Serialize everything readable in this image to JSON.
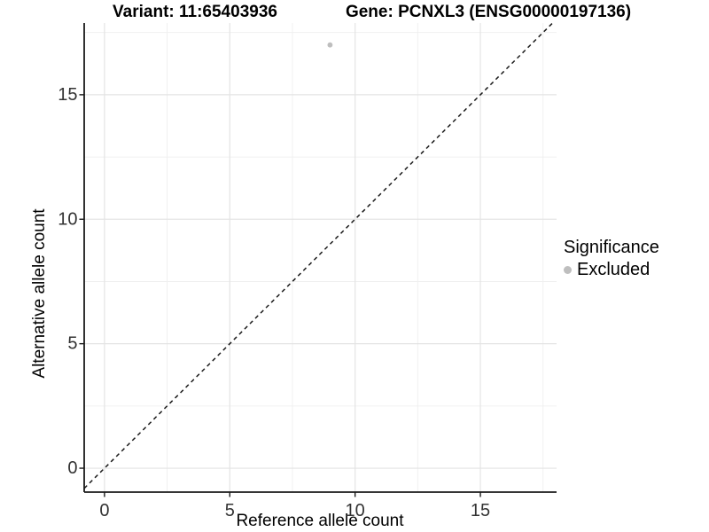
{
  "header": {
    "title_variant": "Variant: 11:65403936",
    "title_gene": "Gene: PCNXL3 (ENSG00000197136)"
  },
  "chart_data": {
    "type": "scatter",
    "title_left": "Variant: 11:65403936",
    "title_right": "Gene: PCNXL3 (ENSG00000197136)",
    "xlabel": "Reference allele count",
    "ylabel": "Alternative allele count",
    "xlim": [
      -0.81,
      18.04
    ],
    "ylim": [
      -0.96,
      17.88
    ],
    "xticks": [
      0,
      5,
      10,
      15
    ],
    "yticks": [
      0,
      5,
      10,
      15
    ],
    "xminor": [
      2.5,
      7.5,
      12.5,
      17.5
    ],
    "yminor": [
      2.5,
      7.5,
      12.5,
      17.5
    ],
    "grid": true,
    "series": [
      {
        "name": "Excluded",
        "color": "#bebebe",
        "points": [
          {
            "x": 9,
            "y": 17
          }
        ]
      }
    ],
    "reference_line": {
      "equation": "y = x",
      "style": "dashed",
      "x1": -0.81,
      "y1": -0.81,
      "x2": 17.88,
      "y2": 17.88
    },
    "legend": {
      "title": "Significance",
      "position": "right",
      "items": [
        {
          "label": "Excluded",
          "color": "#bebebe"
        }
      ]
    },
    "colors": {
      "background": "#ffffff",
      "grid_major": "#e4e4e4",
      "grid_minor": "#f0f0f0",
      "axis_line": "#1a1a1a",
      "tick_text": "#333333",
      "dashed_line": "#1a1a1a"
    }
  }
}
